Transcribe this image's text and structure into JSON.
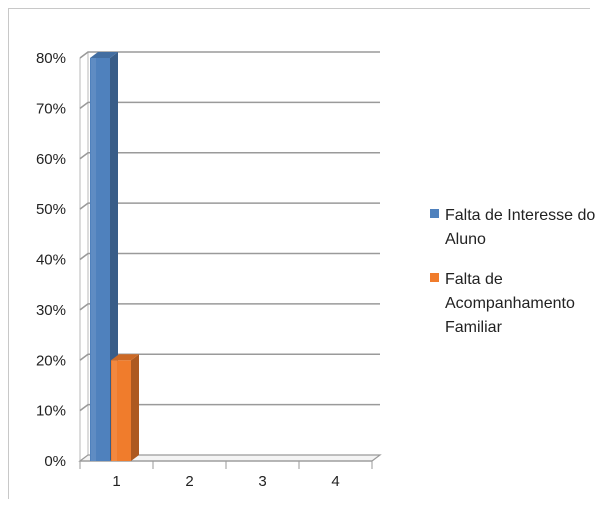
{
  "chart_data": {
    "type": "bar",
    "title": "",
    "xlabel": "",
    "ylabel": "",
    "categories": [
      "1",
      "2",
      "3",
      "4"
    ],
    "y_ticks": [
      "0%",
      "10%",
      "20%",
      "30%",
      "40%",
      "50%",
      "60%",
      "70%",
      "80%"
    ],
    "ylim": [
      0,
      0.8
    ],
    "grid": true,
    "legend_position": "right",
    "series": [
      {
        "name": "Falta de Interesse do Aluno",
        "legend_lines": [
          "Falta de Interesse do",
          "Aluno"
        ],
        "color": "#4f81bd",
        "values": [
          0.8,
          0,
          0,
          0
        ]
      },
      {
        "name": "Falta de Acompanhamento Familiar",
        "legend_lines": [
          "Falta de",
          "Acompanhamento",
          "Familiar"
        ],
        "color": "#f07c2c",
        "values": [
          0.2,
          0,
          0,
          0
        ]
      }
    ]
  }
}
